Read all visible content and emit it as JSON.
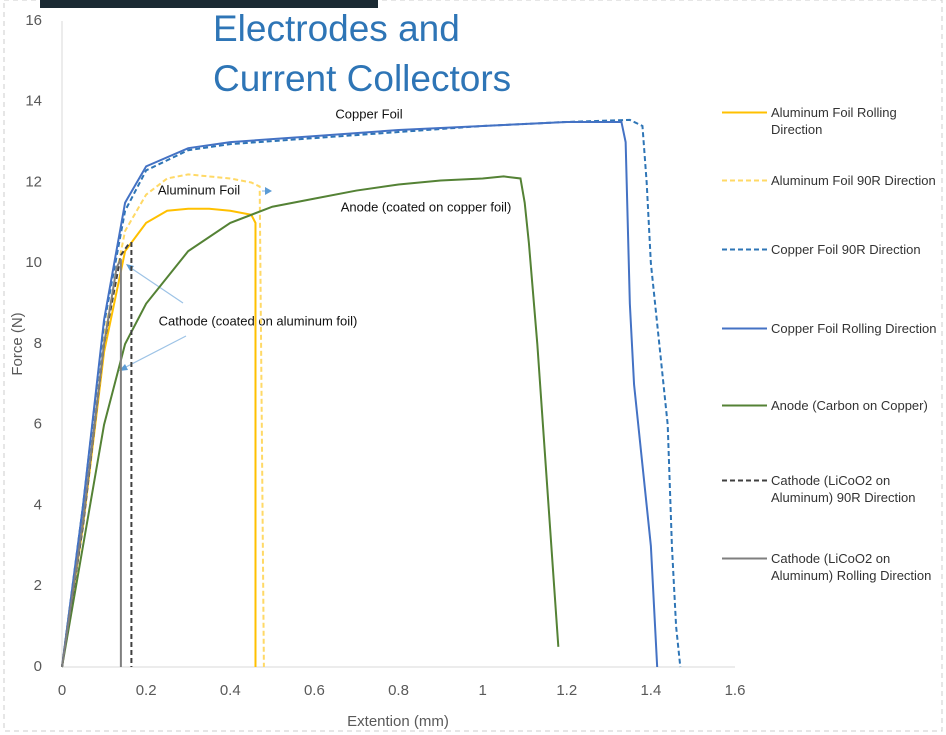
{
  "chart_data": {
    "type": "line",
    "title": "Electrodes and Current Collectors",
    "x_label": "Extention (mm)",
    "y_label": "Force (N)",
    "annotations": [
      "Copper Foil",
      "Aluminum Foil",
      "Anode (coated on copper foil)",
      "Cathode (coated on aluminum foil)"
    ],
    "xlim": [
      0,
      1.6
    ],
    "xticks": [
      0,
      0.2,
      0.4,
      0.6,
      0.8,
      1,
      1.2,
      1.4,
      1.6
    ],
    "ylim": [
      0,
      16
    ],
    "yticks": [
      0,
      2,
      4,
      6,
      8,
      10,
      12,
      14,
      16
    ],
    "grid": false,
    "legend": "right",
    "series": [
      {
        "name": "Aluminum Foil Rolling Direction",
        "color": "#ffc000",
        "dashed": false,
        "x": [
          0,
          0.05,
          0.1,
          0.15,
          0.2,
          0.25,
          0.3,
          0.35,
          0.4,
          0.45,
          0.46,
          0.46
        ],
        "values": [
          0,
          3.5,
          7.8,
          10.3,
          11.0,
          11.3,
          11.35,
          11.35,
          11.3,
          11.2,
          11.0,
          0
        ]
      },
      {
        "name": "Aluminum Foil 90R Direction",
        "color": "#ffd966",
        "dashed": true,
        "x": [
          0,
          0.05,
          0.1,
          0.15,
          0.2,
          0.25,
          0.3,
          0.35,
          0.4,
          0.45,
          0.47,
          0.475,
          0.48
        ],
        "values": [
          0,
          3.8,
          8.2,
          10.8,
          11.7,
          12.1,
          12.2,
          12.15,
          12.1,
          12.0,
          11.9,
          6,
          0
        ]
      },
      {
        "name": "Copper Foil 90R Direction",
        "color": "#2e75b6",
        "dashed": true,
        "x": [
          0,
          0.05,
          0.1,
          0.15,
          0.2,
          0.3,
          0.4,
          0.6,
          0.8,
          1.0,
          1.2,
          1.35,
          1.38,
          1.39,
          1.4,
          1.42,
          1.44,
          1.45,
          1.46,
          1.47
        ],
        "values": [
          0,
          4,
          8.5,
          11.3,
          12.3,
          12.8,
          12.95,
          13.1,
          13.25,
          13.4,
          13.5,
          13.55,
          13.4,
          12,
          10,
          8,
          6,
          3,
          1,
          0
        ]
      },
      {
        "name": "Copper Foil Rolling Direction",
        "color": "#4472c4",
        "dashed": false,
        "x": [
          0,
          0.05,
          0.1,
          0.15,
          0.2,
          0.3,
          0.4,
          0.6,
          0.8,
          1.0,
          1.2,
          1.33,
          1.34,
          1.35,
          1.36,
          1.38,
          1.39,
          1.4,
          1.41,
          1.415
        ],
        "values": [
          0,
          4,
          8.6,
          11.5,
          12.4,
          12.85,
          13.0,
          13.15,
          13.3,
          13.4,
          13.5,
          13.5,
          13.0,
          9,
          7,
          5,
          4,
          3,
          1,
          0
        ]
      },
      {
        "name": "Anode (Carbon on Copper)",
        "color": "#548235",
        "dashed": false,
        "x": [
          0,
          0.05,
          0.1,
          0.15,
          0.2,
          0.3,
          0.4,
          0.5,
          0.6,
          0.7,
          0.8,
          0.9,
          1.0,
          1.05,
          1.09,
          1.1,
          1.11,
          1.13,
          1.15,
          1.17,
          1.18
        ],
        "values": [
          0,
          3,
          6,
          8,
          9,
          10.3,
          11.0,
          11.4,
          11.6,
          11.8,
          11.95,
          12.05,
          12.1,
          12.15,
          12.1,
          11.5,
          10.5,
          8,
          5,
          2,
          0.5
        ]
      },
      {
        "name": "Cathode (LiCoO2 on Aluminum) 90R Direction",
        "color": "#404040",
        "dashed": true,
        "x": [
          0,
          0.05,
          0.1,
          0.14,
          0.16,
          0.165,
          0.165
        ],
        "values": [
          0,
          3.5,
          8,
          10.2,
          10.5,
          10.5,
          0
        ]
      },
      {
        "name": "Cathode (LiCoO2 on Aluminum) Rolling Direction",
        "color": "#7f7f7f",
        "dashed": false,
        "x": [
          0,
          0.05,
          0.1,
          0.13,
          0.14,
          0.14
        ],
        "values": [
          0,
          3.6,
          8,
          9.9,
          10.1,
          0
        ]
      }
    ]
  }
}
